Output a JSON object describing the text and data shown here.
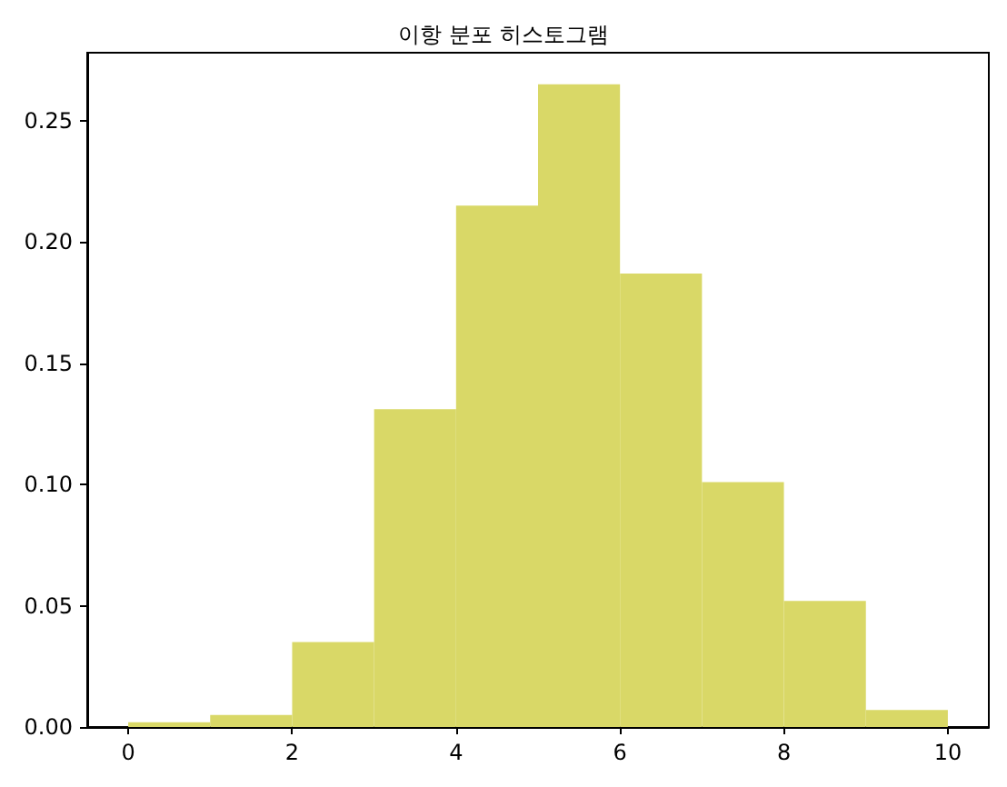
{
  "chart_data": {
    "type": "histogram",
    "title": "이항 분포 히스토그램",
    "bins": [
      0,
      1,
      2,
      3,
      4,
      5,
      6,
      7,
      8,
      9,
      10
    ],
    "values": [
      0.002,
      0.005,
      0.035,
      0.131,
      0.215,
      0.265,
      0.187,
      0.101,
      0.052,
      0.007
    ],
    "color": "#d9d867",
    "xlim": [
      -0.5,
      10.5
    ],
    "xticks": [
      0,
      2,
      4,
      6,
      8,
      10
    ],
    "ylim": [
      0,
      0.278
    ],
    "yticks": [
      {
        "value": 0,
        "label": "0.00"
      },
      {
        "value": 0.05,
        "label": "0.05"
      },
      {
        "value": 0.1,
        "label": "0.10"
      },
      {
        "value": 0.15,
        "label": "0.15"
      },
      {
        "value": 0.2,
        "label": "0.20"
      },
      {
        "value": 0.25,
        "label": "0.25"
      }
    ],
    "grid": false
  }
}
